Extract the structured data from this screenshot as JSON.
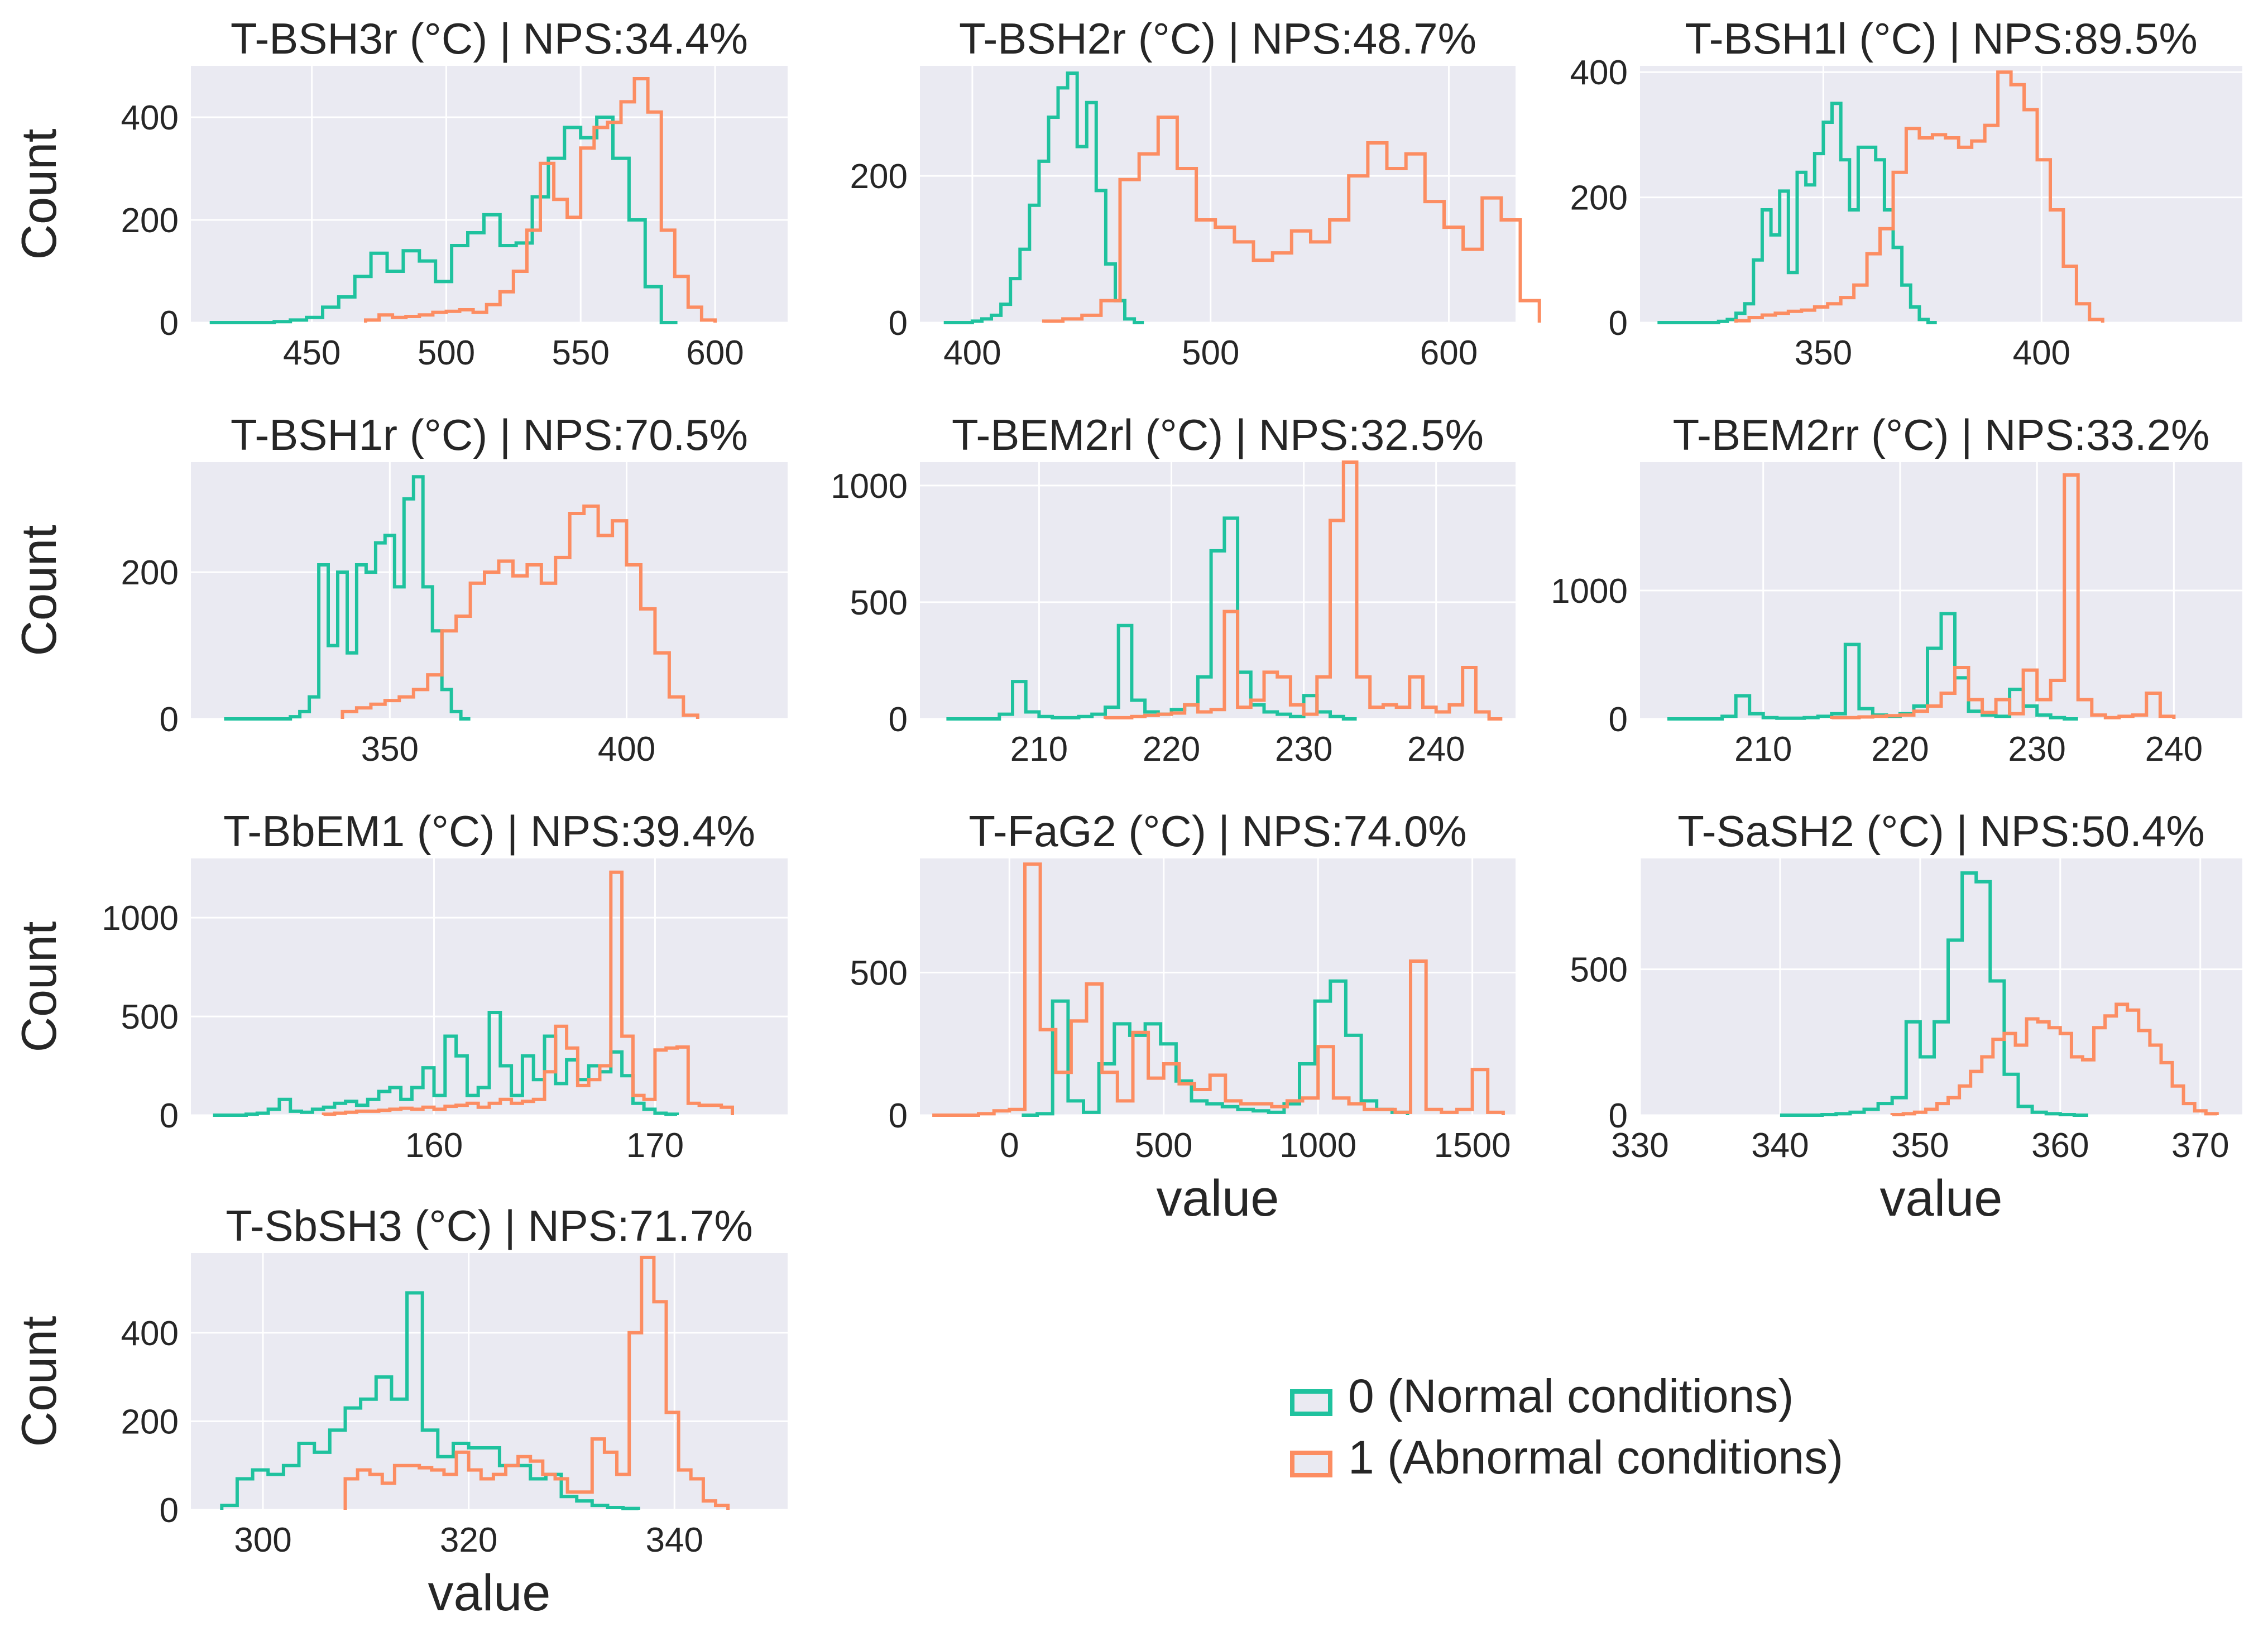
{
  "figure": {
    "legend": [
      {
        "label": "0 (Normal conditions)",
        "color": "#1fc29e"
      },
      {
        "label": "1 (Abnormal conditions)",
        "color": "#fc8d62"
      }
    ],
    "background_color": "#eaeaf2",
    "grid_color": "#ffffff"
  },
  "chart_data": [
    {
      "type": "histogram",
      "title": "T-BSH3r (°C) | NPS:34.4%",
      "xlabel": "",
      "ylabel": "Count",
      "xlim": [
        405,
        627
      ],
      "ylim": [
        0,
        500
      ],
      "xticks": [
        450,
        500,
        550,
        600
      ],
      "yticks": [
        0,
        200,
        400
      ],
      "series": [
        {
          "name": "0 (Normal conditions)",
          "color": "#1fc29e",
          "x_start": 412,
          "bin_width": 6,
          "values": [
            0,
            0,
            0,
            0,
            2,
            5,
            10,
            30,
            50,
            90,
            135,
            100,
            140,
            120,
            80,
            150,
            175,
            210,
            150,
            155,
            245,
            320,
            380,
            360,
            400,
            320,
            200,
            70,
            0
          ]
        },
        {
          "name": "1 (Abnormal conditions)",
          "color": "#fc8d62",
          "x_start": 470,
          "bin_width": 5,
          "values": [
            5,
            15,
            10,
            12,
            15,
            20,
            22,
            25,
            20,
            35,
            60,
            100,
            180,
            310,
            240,
            205,
            340,
            380,
            390,
            430,
            475,
            410,
            180,
            90,
            30,
            5
          ]
        }
      ]
    },
    {
      "type": "histogram",
      "title": "T-BSH2r (°C) | NPS:48.7%",
      "xlabel": "",
      "ylabel": "Count",
      "xlim": [
        378,
        628
      ],
      "ylim": [
        0,
        350
      ],
      "xticks": [
        400,
        500,
        600
      ],
      "yticks": [
        0,
        200
      ],
      "series": [
        {
          "name": "0 (Normal conditions)",
          "color": "#1fc29e",
          "x_start": 388,
          "bin_width": 4,
          "values": [
            0,
            0,
            0,
            2,
            5,
            10,
            25,
            60,
            100,
            160,
            220,
            280,
            320,
            340,
            240,
            300,
            180,
            80,
            30,
            5,
            0
          ]
        },
        {
          "name": "1 (Abnormal conditions)",
          "color": "#fc8d62",
          "x_start": 430,
          "bin_width": 8,
          "values": [
            2,
            5,
            10,
            30,
            195,
            230,
            280,
            210,
            140,
            130,
            110,
            85,
            95,
            125,
            110,
            140,
            200,
            245,
            210,
            230,
            165,
            130,
            100,
            170,
            140,
            30
          ]
        }
      ]
    },
    {
      "type": "histogram",
      "title": "T-BSH1l (°C) | NPS:89.5%",
      "xlabel": "",
      "ylabel": "Count",
      "xlim": [
        308,
        446
      ],
      "ylim": [
        0,
        410
      ],
      "xticks": [
        350,
        400
      ],
      "yticks": [
        0,
        200,
        400
      ],
      "series": [
        {
          "name": "0 (Normal conditions)",
          "color": "#1fc29e",
          "x_start": 312,
          "bin_width": 2,
          "values": [
            0,
            0,
            0,
            0,
            0,
            0,
            0,
            2,
            5,
            15,
            30,
            100,
            180,
            140,
            210,
            80,
            240,
            220,
            270,
            320,
            350,
            260,
            180,
            280,
            280,
            260,
            180,
            120,
            60,
            25,
            5,
            0
          ]
        },
        {
          "name": "1 (Abnormal conditions)",
          "color": "#fc8d62",
          "x_start": 330,
          "bin_width": 3,
          "values": [
            3,
            8,
            12,
            15,
            18,
            20,
            25,
            30,
            40,
            60,
            110,
            150,
            240,
            310,
            295,
            300,
            295,
            280,
            290,
            315,
            400,
            380,
            340,
            260,
            180,
            90,
            30,
            5
          ]
        }
      ]
    },
    {
      "type": "histogram",
      "title": "T-BSH1r (°C) | NPS:70.5%",
      "xlabel": "",
      "ylabel": "Count",
      "xlim": [
        308,
        434
      ],
      "ylim": [
        0,
        350
      ],
      "xticks": [
        350,
        400
      ],
      "yticks": [
        0,
        200
      ],
      "series": [
        {
          "name": "0 (Normal conditions)",
          "color": "#1fc29e",
          "x_start": 315,
          "bin_width": 2,
          "values": [
            0,
            0,
            0,
            0,
            0,
            0,
            0,
            3,
            10,
            30,
            210,
            100,
            200,
            90,
            210,
            200,
            240,
            250,
            180,
            300,
            330,
            180,
            120,
            40,
            10,
            0
          ]
        },
        {
          "name": "1 (Abnormal conditions)",
          "color": "#fc8d62",
          "x_start": 340,
          "bin_width": 3,
          "values": [
            10,
            15,
            20,
            25,
            30,
            40,
            60,
            120,
            140,
            185,
            200,
            215,
            195,
            210,
            185,
            220,
            280,
            290,
            250,
            270,
            210,
            150,
            90,
            30,
            5
          ]
        }
      ]
    },
    {
      "type": "histogram",
      "title": "T-BEM2rl (°C) | NPS:32.5%",
      "xlabel": "",
      "ylabel": "Count",
      "xlim": [
        201,
        246
      ],
      "ylim": [
        0,
        1100
      ],
      "xticks": [
        210,
        220,
        230,
        240
      ],
      "yticks": [
        0,
        500,
        1000
      ],
      "series": [
        {
          "name": "0 (Normal conditions)",
          "color": "#1fc29e",
          "x_start": 203,
          "bin_width": 1,
          "values": [
            0,
            0,
            0,
            0,
            20,
            160,
            30,
            10,
            5,
            5,
            10,
            20,
            50,
            400,
            80,
            30,
            20,
            40,
            60,
            180,
            720,
            860,
            200,
            60,
            30,
            20,
            10,
            100,
            30,
            10,
            0
          ]
        },
        {
          "name": "1 (Abnormal conditions)",
          "color": "#fc8d62",
          "x_start": 215,
          "bin_width": 1,
          "values": [
            5,
            5,
            10,
            15,
            20,
            25,
            60,
            30,
            40,
            460,
            50,
            80,
            200,
            180,
            60,
            20,
            180,
            850,
            1100,
            180,
            50,
            60,
            50,
            180,
            50,
            30,
            60,
            220,
            30,
            0
          ]
        }
      ]
    },
    {
      "type": "histogram",
      "title": "T-BEM2rr (°C) | NPS:33.2%",
      "xlabel": "",
      "ylabel": "Count",
      "xlim": [
        201,
        245
      ],
      "ylim": [
        0,
        2000
      ],
      "xticks": [
        210,
        220,
        230,
        240
      ],
      "yticks": [
        0,
        1000
      ],
      "series": [
        {
          "name": "0 (Normal conditions)",
          "color": "#1fc29e",
          "x_start": 203,
          "bin_width": 1,
          "values": [
            0,
            0,
            0,
            0,
            20,
            180,
            40,
            10,
            5,
            5,
            10,
            20,
            40,
            580,
            80,
            30,
            20,
            40,
            100,
            550,
            820,
            320,
            60,
            30,
            20,
            230,
            100,
            30,
            10,
            0
          ]
        },
        {
          "name": "1 (Abnormal conditions)",
          "color": "#fc8d62",
          "x_start": 215,
          "bin_width": 1,
          "values": [
            10,
            10,
            15,
            20,
            25,
            30,
            60,
            100,
            200,
            400,
            150,
            50,
            150,
            40,
            380,
            150,
            300,
            1900,
            150,
            30,
            10,
            20,
            30,
            200,
            20
          ]
        }
      ]
    },
    {
      "type": "histogram",
      "title": "T-BbEM1 (°C) | NPS:39.4%",
      "xlabel": "",
      "ylabel": "Count",
      "xlim": [
        149,
        176
      ],
      "ylim": [
        0,
        1300
      ],
      "xticks": [
        160,
        170
      ],
      "yticks": [
        0,
        500,
        1000
      ],
      "series": [
        {
          "name": "0 (Normal conditions)",
          "color": "#1fc29e",
          "x_start": 150,
          "bin_width": 0.5,
          "values": [
            0,
            0,
            0,
            5,
            10,
            30,
            80,
            20,
            15,
            30,
            40,
            60,
            70,
            50,
            80,
            120,
            140,
            80,
            140,
            240,
            100,
            400,
            300,
            100,
            140,
            520,
            250,
            100,
            300,
            180,
            400,
            160,
            280,
            180,
            250,
            220,
            320,
            200,
            60,
            30,
            10,
            5
          ]
        },
        {
          "name": "1 (Abnormal conditions)",
          "color": "#fc8d62",
          "x_start": 155,
          "bin_width": 0.5,
          "values": [
            5,
            10,
            15,
            20,
            20,
            25,
            30,
            35,
            30,
            40,
            30,
            45,
            50,
            60,
            40,
            60,
            80,
            60,
            70,
            80,
            220,
            450,
            340,
            150,
            180,
            250,
            1230,
            400,
            100,
            80,
            330,
            340,
            345,
            60,
            50,
            50,
            40
          ]
        }
      ]
    },
    {
      "type": "histogram",
      "title": "T-FaG2 (°C) | NPS:74.0%",
      "xlabel": "value",
      "ylabel": "",
      "xlim": [
        -290,
        1640
      ],
      "ylim": [
        0,
        900
      ],
      "xticks": [
        0,
        500,
        1000,
        1500
      ],
      "yticks": [
        0,
        500
      ],
      "series": [
        {
          "name": "0 (Normal conditions)",
          "color": "#1fc29e",
          "x_start": 40,
          "bin_width": 50,
          "values": [
            0,
            5,
            400,
            50,
            10,
            180,
            320,
            280,
            320,
            250,
            120,
            50,
            40,
            30,
            20,
            15,
            10,
            40,
            180,
            400,
            470,
            280,
            50,
            20,
            10
          ]
        },
        {
          "name": "1 (Abnormal conditions)",
          "color": "#fc8d62",
          "x_start": -250,
          "bin_width": 50,
          "values": [
            0,
            0,
            0,
            5,
            15,
            20,
            880,
            300,
            150,
            330,
            460,
            150,
            50,
            290,
            130,
            180,
            110,
            90,
            140,
            50,
            40,
            40,
            30,
            50,
            60,
            240,
            60,
            40,
            20,
            20,
            10,
            540,
            20,
            10,
            20,
            160,
            10
          ]
        }
      ]
    },
    {
      "type": "histogram",
      "title": "T-SaSH2 (°C) | NPS:50.4%",
      "xlabel": "value",
      "ylabel": "",
      "xlim": [
        330,
        373
      ],
      "ylim": [
        0,
        880
      ],
      "xticks": [
        330,
        340,
        350,
        360,
        370
      ],
      "yticks": [
        0,
        500
      ],
      "series": [
        {
          "name": "0 (Normal conditions)",
          "color": "#1fc29e",
          "x_start": 340,
          "bin_width": 1,
          "values": [
            0,
            0,
            0,
            2,
            5,
            10,
            20,
            40,
            60,
            320,
            200,
            320,
            600,
            830,
            800,
            460,
            140,
            30,
            10,
            5,
            2,
            0
          ]
        },
        {
          "name": "1 (Abnormal conditions)",
          "color": "#fc8d62",
          "x_start": 348,
          "bin_width": 0.8,
          "values": [
            2,
            5,
            10,
            20,
            40,
            60,
            100,
            150,
            200,
            260,
            280,
            240,
            330,
            320,
            300,
            280,
            200,
            190,
            300,
            340,
            380,
            360,
            290,
            240,
            180,
            100,
            40,
            15,
            5
          ]
        }
      ]
    },
    {
      "type": "histogram",
      "title": "T-SbSH3 (°C) | NPS:71.7%",
      "xlabel": "value",
      "ylabel": "Count",
      "xlim": [
        293,
        351
      ],
      "ylim": [
        0,
        580
      ],
      "xticks": [
        300,
        320,
        340
      ],
      "yticks": [
        0,
        200,
        400
      ],
      "series": [
        {
          "name": "0 (Normal conditions)",
          "color": "#1fc29e",
          "x_start": 296,
          "bin_width": 1.5,
          "values": [
            10,
            70,
            90,
            80,
            100,
            150,
            130,
            180,
            230,
            250,
            300,
            250,
            490,
            180,
            120,
            150,
            140,
            140,
            100,
            100,
            70,
            80,
            30,
            20,
            10,
            5,
            3
          ]
        },
        {
          "name": "1 (Abnormal conditions)",
          "color": "#fc8d62",
          "x_start": 308,
          "bin_width": 1.2,
          "values": [
            70,
            90,
            80,
            60,
            100,
            100,
            95,
            90,
            80,
            130,
            90,
            70,
            80,
            100,
            120,
            110,
            80,
            70,
            40,
            40,
            160,
            130,
            80,
            400,
            570,
            470,
            220,
            90,
            70,
            20,
            10
          ]
        }
      ]
    }
  ]
}
